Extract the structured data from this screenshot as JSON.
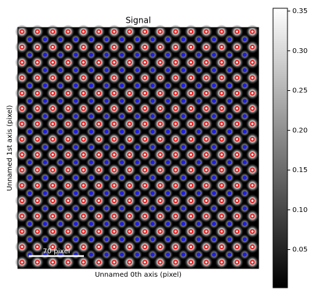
{
  "chart_data": {
    "type": "image",
    "title": "Signal",
    "x_label": "Unnamed 0th axis (pixel)",
    "y_label": "Unnamed 1st axis (pixel)",
    "scalebar_label": "70 pixel",
    "colormap": "gray",
    "clim": [
      0.002,
      0.3535
    ],
    "cticks": [
      0.05,
      {
        "value": 0.1,
        "label": "0.10"
      },
      0.15,
      {
        "value": 0.2,
        "label": "0.20"
      },
      0.25,
      {
        "value": 0.3,
        "label": "0.30"
      },
      0.35
    ]
  }
}
